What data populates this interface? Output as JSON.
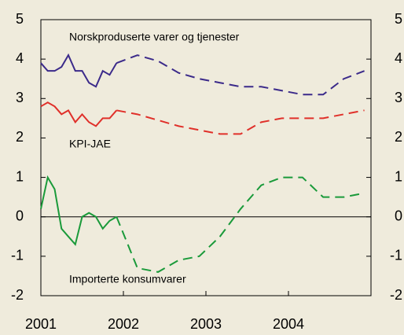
{
  "chart_data": {
    "type": "line",
    "xlim": [
      2001,
      2005
    ],
    "xticks": [
      2001,
      2002,
      2003,
      2004
    ],
    "ylim": [
      -2,
      5
    ],
    "yticks": [
      -2,
      -1,
      0,
      1,
      2,
      3,
      4,
      5
    ],
    "y2lim": [
      -2,
      5
    ],
    "y2ticks": [
      -2,
      -1,
      0,
      1,
      2,
      3,
      4,
      5
    ],
    "series": [
      {
        "name": "Norskproduserte varer og tjenester",
        "color": "#3b2a8a",
        "segments": [
          {
            "style": "solid",
            "x": [
              2001,
              2001.083,
              2001.167,
              2001.25,
              2001.333,
              2001.417,
              2001.5,
              2001.583,
              2001.667,
              2001.75,
              2001.833,
              2001.917
            ],
            "values": [
              3.9,
              3.7,
              3.7,
              3.8,
              4.1,
              3.7,
              3.7,
              3.4,
              3.3,
              3.7,
              3.6,
              3.9
            ]
          },
          {
            "style": "dashed",
            "x": [
              2001.917,
              2002.17,
              2002.42,
              2002.67,
              2002.92,
              2003.17,
              2003.42,
              2003.67,
              2003.92,
              2004.17,
              2004.42,
              2004.67,
              2004.92
            ],
            "values": [
              3.9,
              4.1,
              3.95,
              3.65,
              3.5,
              3.4,
              3.3,
              3.3,
              3.2,
              3.1,
              3.1,
              3.5,
              3.7
            ]
          }
        ]
      },
      {
        "name": "KPI-JAE",
        "color": "#e0302a",
        "segments": [
          {
            "style": "solid",
            "x": [
              2001,
              2001.083,
              2001.167,
              2001.25,
              2001.333,
              2001.417,
              2001.5,
              2001.583,
              2001.667,
              2001.75,
              2001.833,
              2001.917
            ],
            "values": [
              2.8,
              2.9,
              2.8,
              2.6,
              2.7,
              2.4,
              2.6,
              2.4,
              2.3,
              2.5,
              2.5,
              2.7
            ]
          },
          {
            "style": "dashed",
            "x": [
              2001.917,
              2002.17,
              2002.42,
              2002.67,
              2002.92,
              2003.17,
              2003.42,
              2003.67,
              2003.92,
              2004.17,
              2004.42,
              2004.67,
              2004.92
            ],
            "values": [
              2.7,
              2.6,
              2.45,
              2.3,
              2.2,
              2.1,
              2.1,
              2.4,
              2.5,
              2.5,
              2.5,
              2.6,
              2.7
            ]
          }
        ]
      },
      {
        "name": "Importerte konsumvarer",
        "color": "#1a9a3a",
        "segments": [
          {
            "style": "solid",
            "x": [
              2001,
              2001.083,
              2001.167,
              2001.25,
              2001.333,
              2001.417,
              2001.5,
              2001.583,
              2001.667,
              2001.75,
              2001.833,
              2001.917
            ],
            "values": [
              0.2,
              1.0,
              0.7,
              -0.3,
              -0.5,
              -0.7,
              0.0,
              0.1,
              0.0,
              -0.3,
              -0.1,
              0.0
            ]
          },
          {
            "style": "dashed",
            "x": [
              2001.917,
              2002.17,
              2002.42,
              2002.67,
              2002.92,
              2003.17,
              2003.42,
              2003.67,
              2003.92,
              2004.17,
              2004.42,
              2004.67,
              2004.92
            ],
            "values": [
              0.0,
              -1.3,
              -1.4,
              -1.1,
              -1.0,
              -0.5,
              0.2,
              0.8,
              1.0,
              1.0,
              0.5,
              0.5,
              0.6
            ]
          }
        ]
      }
    ]
  }
}
